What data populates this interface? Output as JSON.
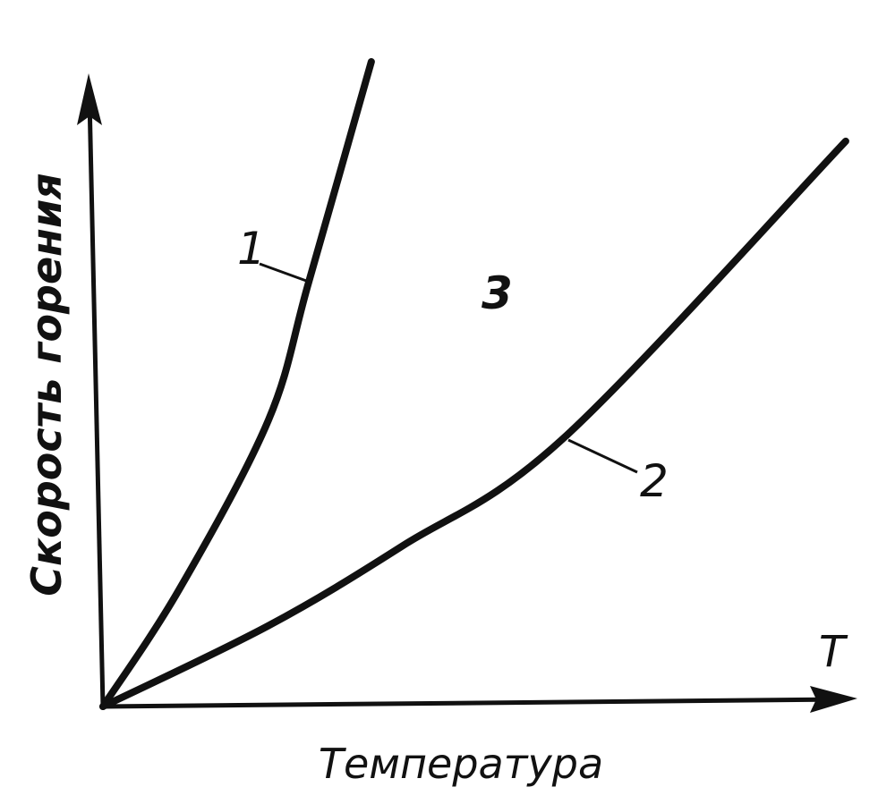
{
  "chart_data": {
    "type": "line",
    "title": "",
    "xlabel": "Температура",
    "ylabel": "Скорость горения",
    "x_axis_symbol": "T",
    "xlim": [
      0,
      10
    ],
    "ylim": [
      0,
      10
    ],
    "grid": false,
    "legend": "none",
    "line_color": "#111111",
    "series": [
      {
        "label": "1",
        "x": [
          0,
          1.01,
          2.2,
          2.74,
          3.57
        ],
        "y": [
          0,
          1.86,
          4.57,
          6.79,
          10.3
        ]
      },
      {
        "label": "2",
        "x": [
          0,
          2.2,
          3.99,
          6.13,
          9.88
        ],
        "y": [
          0,
          1.29,
          2.57,
          4.29,
          9.03
        ]
      }
    ],
    "annotations": [
      {
        "text": "1",
        "target_series": 0
      },
      {
        "text": "2",
        "target_series": 1
      },
      {
        "text": "3",
        "region": "between curves 1 and 2"
      }
    ]
  }
}
